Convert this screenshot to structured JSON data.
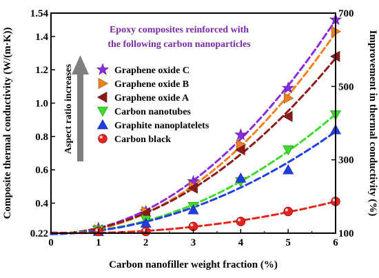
{
  "chart_data": {
    "type": "scatter",
    "title_lines": [
      "Epoxy composites reinforced with",
      "the following carbon nanoparticles"
    ],
    "title_color": "#7b2aa6",
    "xlabel": "Carbon nanofiller weight fraction (%)",
    "ylabel_left": "Composite thermal conductivity (W/(m·K))",
    "ylabel_right": "Improvement in thermal conductivity (%)",
    "arrow_label": "Aspect ratio increases",
    "xlim": [
      0,
      6
    ],
    "ylim_left": [
      0.22,
      1.54
    ],
    "ylim_right": [
      100,
      700
    ],
    "x_ticks": [
      "0",
      "1",
      "2",
      "3",
      "4",
      "5",
      "6"
    ],
    "y_ticks_left": [
      {
        "value": 0.22,
        "label": "0.22"
      },
      {
        "value": 0.4,
        "label": "0.4"
      },
      {
        "value": 0.6,
        "label": "0.6"
      },
      {
        "value": 0.8,
        "label": "0.8"
      },
      {
        "value": 1.0,
        "label": "1.0"
      },
      {
        "value": 1.2,
        "label": "1.2"
      },
      {
        "value": 1.4,
        "label": "1.4"
      },
      {
        "value": 1.54,
        "label": "1.54"
      }
    ],
    "y_ticks_right": [
      {
        "value": 100,
        "label": "100"
      },
      {
        "value": 300,
        "label": "300"
      },
      {
        "value": 500,
        "label": "500"
      },
      {
        "value": 700,
        "label": "700"
      }
    ],
    "series": [
      {
        "name": "Graphene oxide C",
        "marker": "star",
        "color": "#8a2be2",
        "x": [
          1,
          2,
          3,
          4,
          5,
          6
        ],
        "y": [
          0.25,
          0.35,
          0.53,
          0.81,
          1.09,
          1.5
        ]
      },
      {
        "name": "Graphene oxide B",
        "marker": "triangle-right",
        "color": "#f0821e",
        "x": [
          1,
          2,
          3,
          4,
          5,
          6
        ],
        "y": [
          0.24,
          0.35,
          0.5,
          0.75,
          1.03,
          1.43
        ]
      },
      {
        "name": "Graphene oxide A",
        "marker": "triangle-left",
        "color": "#8b1a1a",
        "x": [
          1,
          2,
          3,
          4,
          5,
          6
        ],
        "y": [
          0.24,
          0.34,
          0.49,
          0.72,
          0.92,
          1.28
        ]
      },
      {
        "name": "Carbon nanotubes",
        "marker": "triangle-down",
        "color": "#3ddc2a",
        "x": [
          1,
          2,
          3,
          4,
          5,
          6
        ],
        "y": [
          0.24,
          0.3,
          0.38,
          0.53,
          0.72,
          0.93
        ]
      },
      {
        "name": "Graphite nanoplatelets",
        "marker": "triangle-up",
        "color": "#1f3ee6",
        "x": [
          1,
          2,
          3,
          4,
          5,
          6
        ],
        "y": [
          0.23,
          0.28,
          0.36,
          0.55,
          0.6,
          0.84
        ]
      },
      {
        "name": "Carbon black",
        "marker": "circle",
        "color": "#e8231e",
        "x": [
          1,
          2,
          3,
          4,
          5,
          6
        ],
        "y": [
          0.23,
          0.23,
          0.26,
          0.29,
          0.35,
          0.41
        ]
      }
    ],
    "grid": false,
    "legend_position": "upper-left"
  }
}
